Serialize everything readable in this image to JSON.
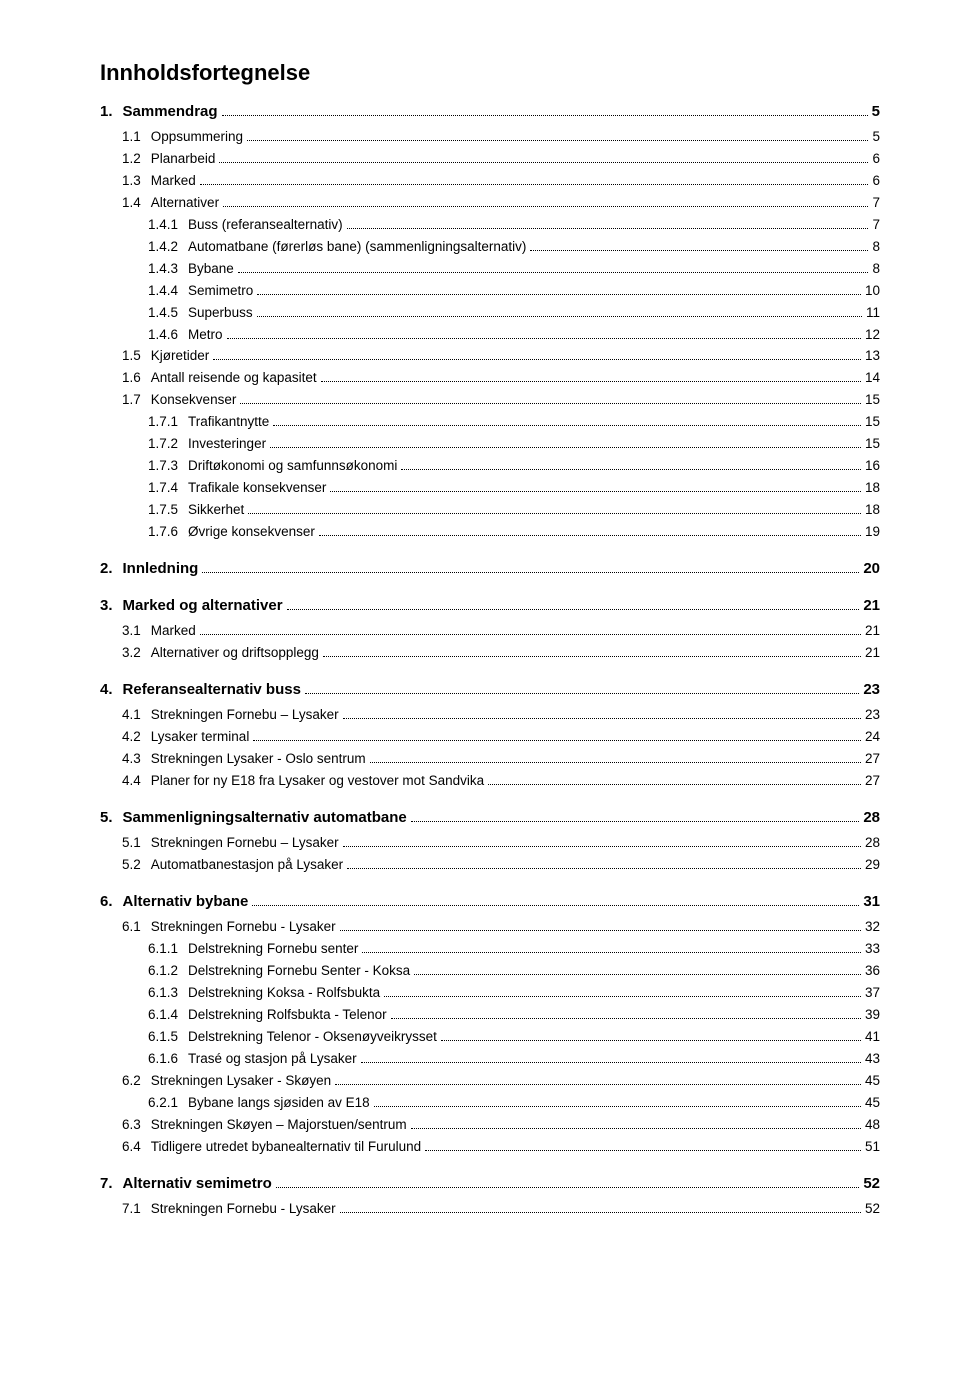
{
  "title": "Innholdsfortegnelse",
  "entries": [
    {
      "level": 1,
      "num": "1.",
      "label": "Sammendrag",
      "page": "5"
    },
    {
      "level": 2,
      "num": "1.1",
      "label": "Oppsummering",
      "page": "5"
    },
    {
      "level": 2,
      "num": "1.2",
      "label": "Planarbeid",
      "page": "6"
    },
    {
      "level": 2,
      "num": "1.3",
      "label": "Marked",
      "page": "6"
    },
    {
      "level": 2,
      "num": "1.4",
      "label": "Alternativer",
      "page": "7"
    },
    {
      "level": 3,
      "num": "1.4.1",
      "label": "Buss (referansealternativ)",
      "page": "7"
    },
    {
      "level": 3,
      "num": "1.4.2",
      "label": "Automatbane (førerløs bane) (sammenligningsalternativ)",
      "page": "8"
    },
    {
      "level": 3,
      "num": "1.4.3",
      "label": "Bybane",
      "page": "8"
    },
    {
      "level": 3,
      "num": "1.4.4",
      "label": "Semimetro",
      "page": "10"
    },
    {
      "level": 3,
      "num": "1.4.5",
      "label": "Superbuss",
      "page": "11"
    },
    {
      "level": 3,
      "num": "1.4.6",
      "label": "Metro",
      "page": "12"
    },
    {
      "level": 2,
      "num": "1.5",
      "label": "Kjøretider",
      "page": "13"
    },
    {
      "level": 2,
      "num": "1.6",
      "label": "Antall reisende og kapasitet",
      "page": "14"
    },
    {
      "level": 2,
      "num": "1.7",
      "label": "Konsekvenser",
      "page": "15"
    },
    {
      "level": 3,
      "num": "1.7.1",
      "label": "Trafikantnytte",
      "page": "15"
    },
    {
      "level": 3,
      "num": "1.7.2",
      "label": "Investeringer",
      "page": "15"
    },
    {
      "level": 3,
      "num": "1.7.3",
      "label": "Driftøkonomi og samfunnsøkonomi",
      "page": "16"
    },
    {
      "level": 3,
      "num": "1.7.4",
      "label": "Trafikale konsekvenser",
      "page": "18"
    },
    {
      "level": 3,
      "num": "1.7.5",
      "label": "Sikkerhet",
      "page": "18"
    },
    {
      "level": 3,
      "num": "1.7.6",
      "label": "Øvrige konsekvenser",
      "page": "19"
    },
    {
      "level": 1,
      "num": "2.",
      "label": "Innledning",
      "page": "20"
    },
    {
      "level": 1,
      "num": "3.",
      "label": "Marked og alternativer",
      "page": "21"
    },
    {
      "level": 2,
      "num": "3.1",
      "label": "Marked",
      "page": "21"
    },
    {
      "level": 2,
      "num": "3.2",
      "label": "Alternativer og driftsopplegg",
      "page": "21"
    },
    {
      "level": 1,
      "num": "4.",
      "label": "Referansealternativ buss",
      "page": "23"
    },
    {
      "level": 2,
      "num": "4.1",
      "label": "Strekningen Fornebu – Lysaker",
      "page": "23"
    },
    {
      "level": 2,
      "num": "4.2",
      "label": "Lysaker terminal",
      "page": "24"
    },
    {
      "level": 2,
      "num": "4.3",
      "label": "Strekningen Lysaker - Oslo sentrum",
      "page": "27"
    },
    {
      "level": 2,
      "num": "4.4",
      "label": "Planer for ny E18 fra Lysaker og vestover mot Sandvika",
      "page": "27"
    },
    {
      "level": 1,
      "num": "5.",
      "label": "Sammenligningsalternativ automatbane",
      "page": "28"
    },
    {
      "level": 2,
      "num": "5.1",
      "label": "Strekningen Fornebu – Lysaker",
      "page": "28"
    },
    {
      "level": 2,
      "num": "5.2",
      "label": "Automatbanestasjon på Lysaker",
      "page": "29"
    },
    {
      "level": 1,
      "num": "6.",
      "label": "Alternativ bybane",
      "page": "31"
    },
    {
      "level": 2,
      "num": "6.1",
      "label": "Strekningen Fornebu - Lysaker",
      "page": "32"
    },
    {
      "level": 3,
      "num": "6.1.1",
      "label": "Delstrekning Fornebu senter",
      "page": "33"
    },
    {
      "level": 3,
      "num": "6.1.2",
      "label": "Delstrekning Fornebu Senter - Koksa",
      "page": "36"
    },
    {
      "level": 3,
      "num": "6.1.3",
      "label": "Delstrekning Koksa - Rolfsbukta",
      "page": "37"
    },
    {
      "level": 3,
      "num": "6.1.4",
      "label": "Delstrekning Rolfsbukta - Telenor",
      "page": "39"
    },
    {
      "level": 3,
      "num": "6.1.5",
      "label": "Delstrekning Telenor - Oksenøyveikrysset",
      "page": "41"
    },
    {
      "level": 3,
      "num": "6.1.6",
      "label": "Trasé og stasjon på Lysaker",
      "page": "43"
    },
    {
      "level": "2b",
      "num": "6.2",
      "label": "Strekningen Lysaker - Skøyen",
      "page": "45"
    },
    {
      "level": 3,
      "num": "6.2.1",
      "label": "Bybane langs sjøsiden av E18",
      "page": "45"
    },
    {
      "level": "2b",
      "num": "6.3",
      "label": "Strekningen Skøyen – Majorstuen/sentrum",
      "page": "48"
    },
    {
      "level": "2b",
      "num": "6.4",
      "label": "Tidligere utredet bybanealternativ til Furulund",
      "page": "51"
    },
    {
      "level": 1,
      "num": "7.",
      "label": "Alternativ semimetro",
      "page": "52"
    },
    {
      "level": 2,
      "num": "7.1",
      "label": "Strekningen Fornebu - Lysaker",
      "page": "52"
    }
  ]
}
